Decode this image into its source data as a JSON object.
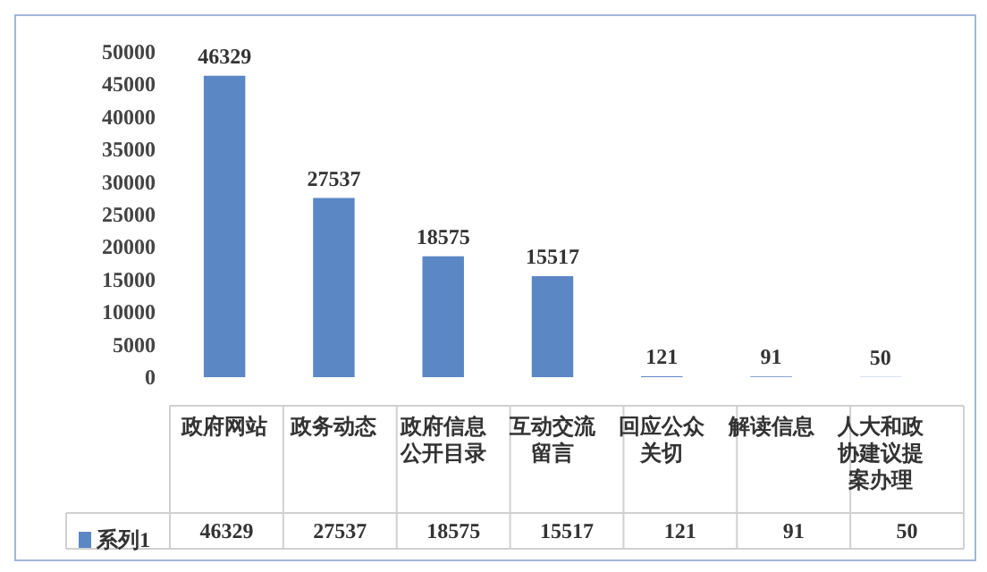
{
  "chart_data": {
    "type": "bar",
    "categories": [
      "政府网站",
      "政务动态",
      "政府信息公开目录",
      "互动交流留言",
      "回应公众关切",
      "解读信息",
      "人大和政协建议提案办理"
    ],
    "series": [
      {
        "name": "系列1",
        "color": "#5b87c5",
        "values": [
          46329,
          27537,
          18575,
          15517,
          121,
          91,
          50
        ],
        "value_labels": [
          "46329",
          "27537",
          "18575",
          "15517",
          "121",
          "91",
          "50"
        ]
      }
    ],
    "ylim": [
      0,
      50000
    ],
    "yticks": [
      0,
      5000,
      10000,
      15000,
      20000,
      25000,
      30000,
      35000,
      40000,
      45000,
      50000
    ],
    "annotations": [
      "46329",
      "27537",
      "18575",
      "15517",
      "121",
      "91",
      "50"
    ],
    "grid": false,
    "legend": "bottom left"
  }
}
